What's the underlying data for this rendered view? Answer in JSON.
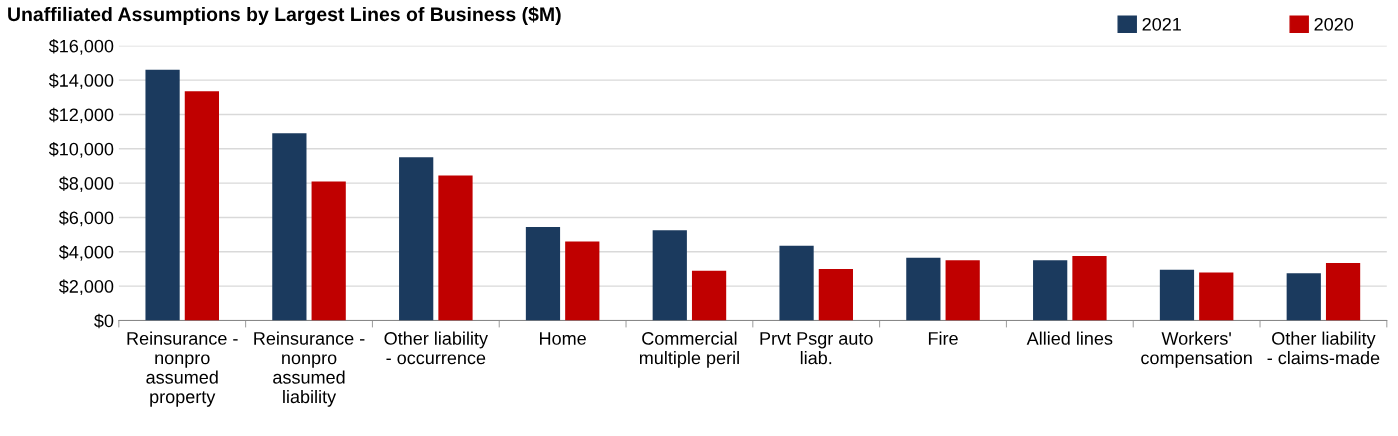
{
  "chart_data": {
    "type": "bar",
    "title": "Unaffiliated Assumptions by Largest Lines of Business ($M)",
    "categories": [
      "Reinsurance -\nnonpro\nassumed\nproperty",
      "Reinsurance -\nnonpro\nassumed\nliability",
      "Other liability\n- occurrence",
      "Home",
      "Commercial\nmultiple peril",
      "Prvt Psgr auto\nliab.",
      "Fire",
      "Allied lines",
      "Workers'\ncompensation",
      "Other liability\n- claims-made"
    ],
    "series": [
      {
        "name": "2021",
        "color": "#1b3a5e",
        "values": [
          14600,
          10900,
          9500,
          5450,
          5250,
          4350,
          3650,
          3500,
          2950,
          2750
        ]
      },
      {
        "name": "2020",
        "color": "#c00000",
        "values": [
          13350,
          8100,
          8450,
          4600,
          2900,
          3000,
          3500,
          3750,
          2800,
          3350
        ]
      }
    ],
    "ylim": [
      0,
      16000
    ],
    "yticks": [
      {
        "value": 0,
        "label": "$0"
      },
      {
        "value": 2000,
        "label": "$2,000"
      },
      {
        "value": 4000,
        "label": "$4,000"
      },
      {
        "value": 6000,
        "label": "$6,000"
      },
      {
        "value": 8000,
        "label": "$8,000"
      },
      {
        "value": 10000,
        "label": "$10,000"
      },
      {
        "value": 12000,
        "label": "$12,000"
      },
      {
        "value": 14000,
        "label": "$14,000"
      },
      {
        "value": 16000,
        "label": "$16,000"
      }
    ],
    "grid": "y",
    "legend": "top right"
  }
}
